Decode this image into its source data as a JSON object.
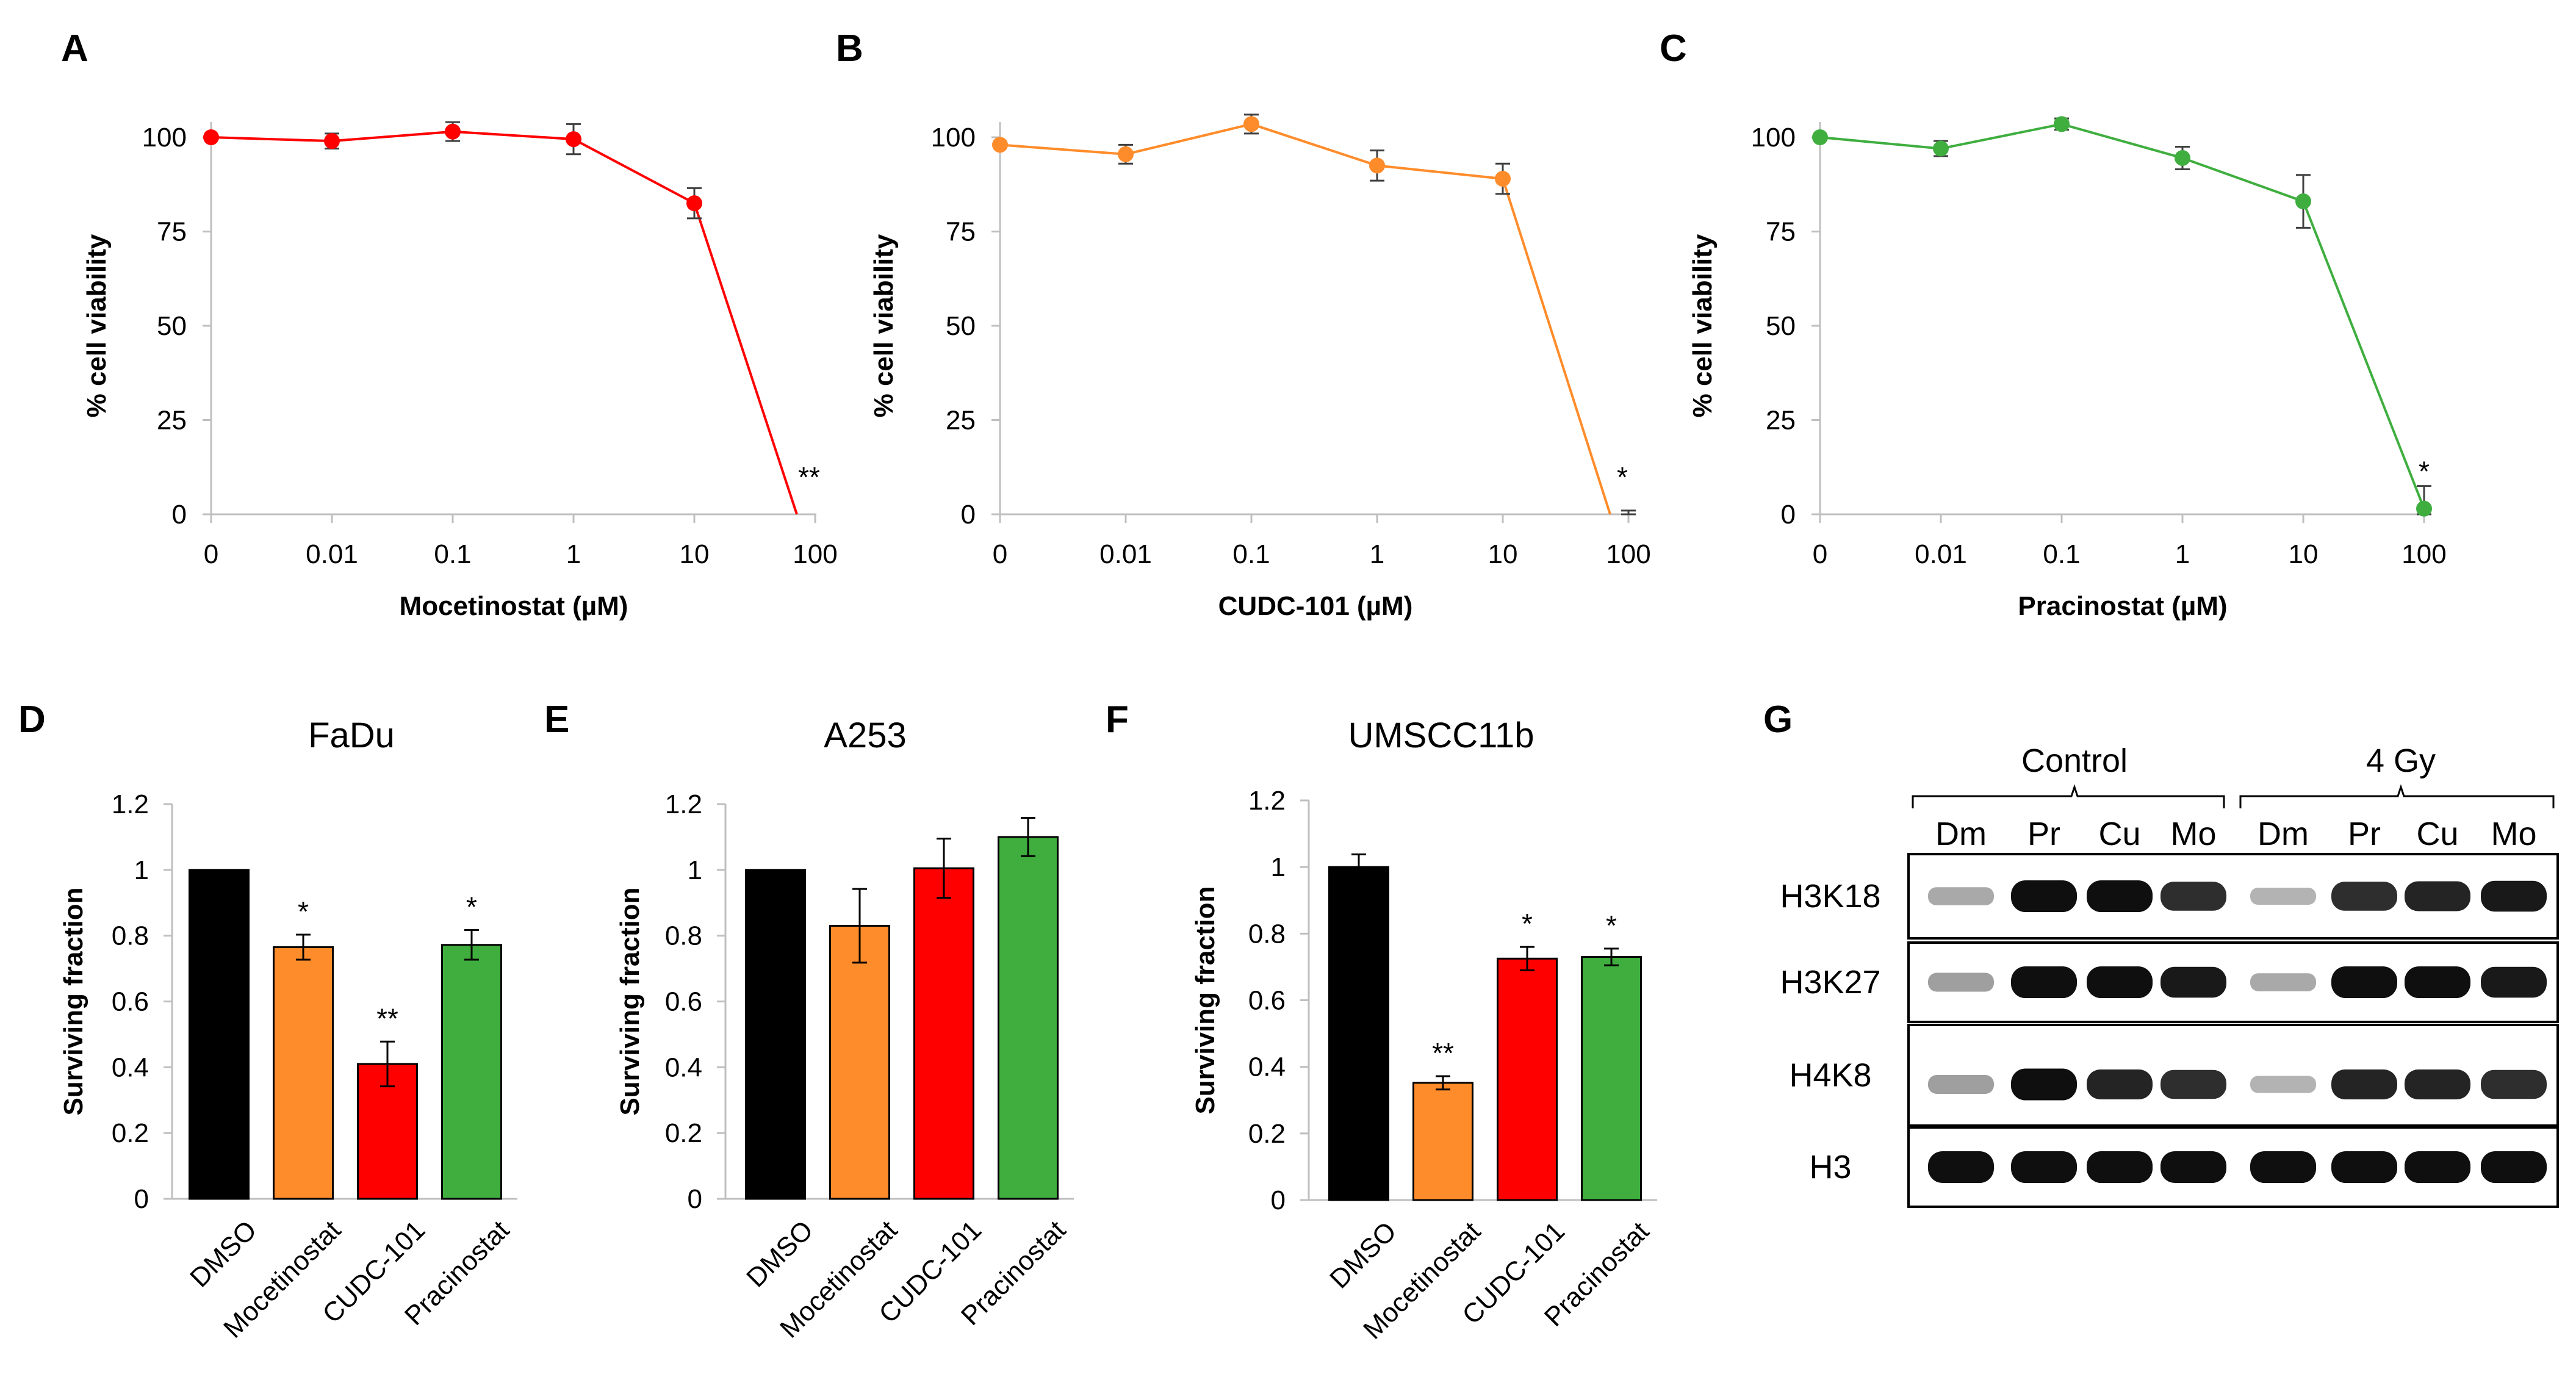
{
  "chart_data": [
    {
      "panel": "A",
      "type": "line",
      "color": "#ff0000",
      "x": [
        "0",
        "0.01",
        "0.1",
        "1",
        "10",
        "100"
      ],
      "values": [
        100,
        99,
        101.5,
        99.5,
        82.5,
        0
      ],
      "errors": [
        0,
        2,
        2.5,
        4,
        4,
        0
      ],
      "significance": [
        "",
        "",
        "",
        "",
        "",
        "**"
      ],
      "xlabel": "Mocetinostat (µM)",
      "ylabel": "% cell viability",
      "ylim": [
        0,
        100
      ],
      "yticks": [
        "0",
        "25",
        "50",
        "75",
        "100"
      ]
    },
    {
      "panel": "B",
      "type": "line",
      "color": "#ff8c2a",
      "x": [
        "0",
        "0.01",
        "0.1",
        "1",
        "10",
        "100"
      ],
      "values": [
        98,
        95.5,
        103.5,
        92.5,
        89,
        0
      ],
      "errors": [
        0,
        2.5,
        2.5,
        4,
        4,
        1
      ],
      "significance": [
        "",
        "",
        "",
        "",
        "",
        "*"
      ],
      "xlabel": "CUDC-101 (µM)",
      "ylabel": "% cell viability",
      "ylim": [
        0,
        100
      ],
      "yticks": [
        "0",
        "25",
        "50",
        "75",
        "100"
      ]
    },
    {
      "panel": "C",
      "type": "line",
      "color": "#3fae3f",
      "x": [
        "0",
        "0.01",
        "0.1",
        "1",
        "10",
        "100"
      ],
      "values": [
        100,
        97,
        103.5,
        94.5,
        83,
        1.5
      ],
      "errors": [
        0,
        2,
        1.5,
        3,
        7,
        6
      ],
      "significance": [
        "",
        "",
        "",
        "",
        "",
        "*"
      ],
      "xlabel": "Pracinostat (µM)",
      "ylabel": "% cell viability",
      "ylim": [
        0,
        100
      ],
      "yticks": [
        "0",
        "25",
        "50",
        "75",
        "100"
      ]
    },
    {
      "panel": "D",
      "type": "bar",
      "title": "FaDu",
      "categories": [
        "DMSO",
        "Mocetinostat",
        "CUDC-101",
        "Pracinostat"
      ],
      "values": [
        1.0,
        0.765,
        0.41,
        0.772
      ],
      "errors": [
        0,
        0.038,
        0.068,
        0.045
      ],
      "colors": [
        "#000000",
        "#ff8c2a",
        "#ff0000",
        "#3fae3f"
      ],
      "significance": [
        "",
        "*",
        "**",
        "*"
      ],
      "ylabel": "Surviving fraction",
      "ylim": [
        0,
        1.2
      ],
      "yticks": [
        "0",
        "0.2",
        "0.4",
        "0.6",
        "0.8",
        "1",
        "1.2"
      ]
    },
    {
      "panel": "E",
      "type": "bar",
      "title": "A253",
      "categories": [
        "DMSO",
        "Mocetinostat",
        "CUDC-101",
        "Pracinostat"
      ],
      "values": [
        1.0,
        0.83,
        1.005,
        1.1
      ],
      "errors": [
        0,
        0.112,
        0.09,
        0.058
      ],
      "colors": [
        "#000000",
        "#ff8c2a",
        "#ff0000",
        "#3fae3f"
      ],
      "significance": [
        "",
        "",
        "",
        ""
      ],
      "ylabel": "Surviving fraction",
      "ylim": [
        0,
        1.2
      ],
      "yticks": [
        "0",
        "0.2",
        "0.4",
        "0.6",
        "0.8",
        "1",
        "1.2"
      ]
    },
    {
      "panel": "F",
      "type": "bar",
      "title": "UMSCC11b",
      "categories": [
        "DMSO",
        "Mocetinostat",
        "CUDC-101",
        "Pracinostat"
      ],
      "values": [
        1.0,
        0.352,
        0.725,
        0.73
      ],
      "errors": [
        0.038,
        0.02,
        0.035,
        0.025
      ],
      "colors": [
        "#000000",
        "#ff8c2a",
        "#ff0000",
        "#3fae3f"
      ],
      "significance": [
        "",
        "**",
        "*",
        "*"
      ],
      "ylabel": "Surviving fraction",
      "ylim": [
        0,
        1.2
      ],
      "yticks": [
        "0",
        "0.2",
        "0.4",
        "0.6",
        "0.8",
        "1",
        "1.2"
      ]
    }
  ],
  "panel_g": {
    "letter": "G",
    "group_labels": [
      "Control",
      "4 Gy"
    ],
    "lane_labels": [
      "Dm",
      "Pr",
      "Cu",
      "Mo",
      "Dm",
      "Pr",
      "Cu",
      "Mo"
    ],
    "rows": [
      {
        "label": "H3K18",
        "intensities": [
          0.25,
          1,
          1,
          0.85,
          0.2,
          0.85,
          0.9,
          0.95
        ]
      },
      {
        "label": "H3K27",
        "intensities": [
          0.3,
          1,
          1,
          0.95,
          0.25,
          1,
          1,
          0.95
        ]
      },
      {
        "label": "H4K8",
        "intensities": [
          0.3,
          1,
          0.9,
          0.85,
          0.2,
          0.9,
          0.9,
          0.85
        ]
      },
      {
        "label": "H3",
        "intensities": [
          1,
          1,
          1,
          1,
          1,
          1,
          1,
          1
        ]
      }
    ]
  }
}
